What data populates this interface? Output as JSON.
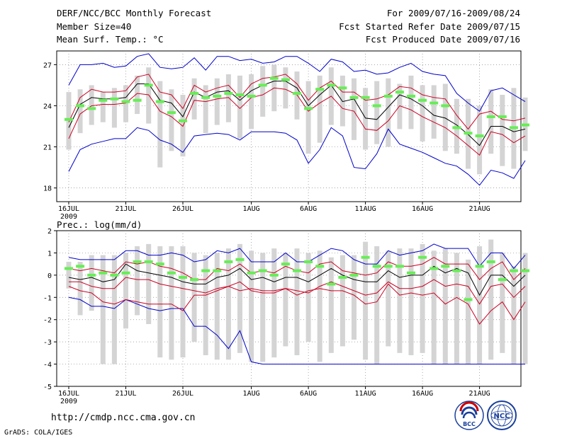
{
  "header": {
    "title": "DERF/NCC/BCC Monthly Forecast",
    "member_size": "Member Size=40",
    "variable_top": "Mean Surf. Temp.: °C",
    "variable_bottom": "Prec.: log(mm/d)",
    "period": "For 2009/07/16-2009/08/24",
    "start_date": "Fcst Started Refer Date 2009/07/15",
    "produced_date": "Fcst Produced Date 2009/07/16"
  },
  "footer": {
    "url": "http://cmdp.ncc.cma.gov.cn",
    "grads": "GrADS: COLA/IGES",
    "logo_bcc": "BCC",
    "logo_ncc": "NCC"
  },
  "colors": {
    "max_min": "#0000cc",
    "spread": "#cc0022",
    "mean": "#000000",
    "median": "#66ee55",
    "box": "#d4d4d4",
    "grid": "#888888"
  },
  "chart_data": [
    {
      "type": "line",
      "title": "Mean Surf. Temp.: °C",
      "x_tick_labels": [
        "16JUL",
        "21JUL",
        "26JUL",
        "1AUG",
        "6AUG",
        "11AUG",
        "16AUG",
        "21AUG"
      ],
      "year_label": "2009",
      "x_tick_days": [
        1,
        6,
        11,
        17,
        22,
        27,
        32,
        37
      ],
      "ylim": [
        17,
        28
      ],
      "yticks": [
        18,
        21,
        24,
        27
      ],
      "series": [
        {
          "name": "max",
          "values": [
            25.5,
            27.0,
            27.0,
            27.1,
            26.8,
            26.9,
            27.6,
            27.8,
            26.8,
            26.7,
            26.8,
            27.5,
            26.6,
            27.6,
            27.6,
            27.3,
            27.4,
            27.1,
            27.2,
            27.6,
            27.6,
            27.1,
            26.5,
            27.4,
            27.2,
            26.5,
            26.6,
            26.3,
            26.4,
            26.8,
            27.1,
            26.5,
            26.3,
            26.2,
            24.9,
            24.2,
            23.6,
            25.1,
            25.3,
            24.8,
            24.3
          ]
        },
        {
          "name": "upper",
          "values": [
            22.8,
            24.6,
            25.2,
            25.0,
            25.0,
            25.1,
            26.1,
            26.3,
            25.0,
            24.8,
            23.8,
            25.5,
            25.0,
            25.3,
            25.5,
            24.6,
            25.6,
            26.0,
            26.1,
            26.3,
            25.6,
            24.4,
            25.3,
            25.8,
            25.0,
            25.0,
            24.4,
            24.5,
            24.8,
            25.4,
            25.3,
            24.8,
            24.6,
            24.5,
            23.3,
            22.3,
            23.4,
            23.6,
            23.0,
            22.9,
            23.1
          ]
        },
        {
          "name": "mean",
          "values": [
            22.4,
            24.1,
            24.6,
            24.5,
            24.5,
            24.6,
            25.6,
            25.6,
            24.4,
            24.2,
            23.2,
            25.0,
            24.6,
            25.0,
            25.1,
            24.4,
            25.1,
            25.5,
            25.8,
            25.8,
            25.3,
            24.0,
            24.8,
            25.5,
            24.3,
            24.5,
            23.1,
            23.0,
            23.9,
            24.8,
            24.5,
            24.0,
            23.3,
            23.1,
            22.6,
            21.9,
            21.1,
            22.5,
            22.5,
            22.1,
            22.3
          ]
        },
        {
          "name": "lower",
          "values": [
            21.6,
            23.4,
            24.0,
            24.1,
            24.1,
            24.2,
            24.9,
            24.8,
            23.6,
            23.2,
            22.5,
            24.4,
            24.3,
            24.5,
            24.6,
            23.8,
            24.6,
            24.8,
            25.3,
            25.2,
            24.8,
            23.6,
            24.2,
            24.7,
            23.8,
            23.6,
            22.3,
            22.2,
            22.9,
            24.0,
            23.7,
            23.2,
            22.8,
            22.4,
            21.8,
            21.1,
            20.4,
            22.1,
            21.9,
            21.3,
            21.8
          ]
        },
        {
          "name": "min",
          "values": [
            19.2,
            20.8,
            21.2,
            21.4,
            21.6,
            21.6,
            22.4,
            22.2,
            21.5,
            21.2,
            20.6,
            21.8,
            21.9,
            22.0,
            21.9,
            21.5,
            22.1,
            22.1,
            22.1,
            22.0,
            21.5,
            19.8,
            20.8,
            22.4,
            21.8,
            19.5,
            19.4,
            20.5,
            22.3,
            21.2,
            20.9,
            20.6,
            20.2,
            19.8,
            19.6,
            19.0,
            18.2,
            19.3,
            19.1,
            18.7,
            20.0
          ]
        },
        {
          "name": "median",
          "values": [
            23.0,
            24.0,
            23.8,
            24.4,
            24.5,
            24.3,
            24.4,
            25.5,
            24.3,
            23.5,
            22.9,
            24.9,
            24.6,
            24.7,
            24.9,
            24.8,
            24.7,
            25.5,
            26.0,
            25.9,
            24.9,
            23.8,
            25.2,
            25.5,
            25.3,
            24.6,
            24.6,
            24.0,
            24.7,
            25.0,
            24.7,
            24.4,
            24.2,
            24.0,
            22.4,
            22.0,
            21.8,
            23.2,
            23.2,
            22.4,
            22.6
          ]
        },
        {
          "name": "box_high",
          "values": [
            25.0,
            25.2,
            25.5,
            25.0,
            25.3,
            25.5,
            26.2,
            26.8,
            25.8,
            25.2,
            24.8,
            26.0,
            25.5,
            26.0,
            26.3,
            26.2,
            26.3,
            26.9,
            27.0,
            26.8,
            26.5,
            25.8,
            26.2,
            26.8,
            26.2,
            26.0,
            25.3,
            25.8,
            26.0,
            25.6,
            26.2,
            25.5,
            25.5,
            25.6,
            24.5,
            24.5,
            24.0,
            25.2,
            24.8,
            25.3,
            24.6
          ]
        },
        {
          "name": "box_low",
          "values": [
            20.8,
            22.0,
            22.6,
            22.8,
            22.4,
            22.8,
            23.4,
            22.7,
            19.5,
            20.7,
            20.3,
            23.0,
            22.0,
            22.6,
            22.8,
            21.6,
            22.3,
            23.2,
            23.6,
            23.8,
            23.0,
            20.5,
            21.3,
            22.6,
            22.5,
            21.5,
            20.8,
            21.2,
            21.0,
            22.3,
            22.3,
            21.4,
            21.6,
            20.7,
            20.5,
            19.4,
            19.0,
            20.5,
            19.6,
            19.4,
            20.7
          ]
        }
      ]
    },
    {
      "type": "line",
      "title": "Prec.: log(mm/d)",
      "x_tick_labels": [
        "16JUL",
        "21JUL",
        "26JUL",
        "1AUG",
        "6AUG",
        "11AUG",
        "16AUG",
        "21AUG"
      ],
      "year_label": "2009",
      "x_tick_days": [
        1,
        6,
        11,
        17,
        22,
        27,
        32,
        37
      ],
      "ylim": [
        -5,
        2
      ],
      "yticks": [
        -5,
        -4,
        -3,
        -2,
        -1,
        0,
        1,
        2
      ],
      "series": [
        {
          "name": "max",
          "values": [
            0.8,
            0.7,
            0.7,
            0.7,
            0.7,
            1.1,
            1.1,
            0.9,
            0.9,
            1.0,
            0.9,
            0.6,
            0.7,
            1.1,
            1.0,
            1.2,
            0.6,
            0.6,
            0.6,
            1.0,
            0.6,
            0.6,
            0.9,
            1.2,
            1.1,
            0.7,
            0.5,
            0.5,
            1.1,
            0.9,
            1.0,
            1.1,
            1.4,
            1.2,
            1.2,
            1.2,
            0.4,
            1.0,
            1.0,
            0.3,
            0.9
          ]
        },
        {
          "name": "upper",
          "values": [
            0.3,
            0.2,
            0.3,
            0.2,
            0.1,
            0.6,
            0.5,
            0.6,
            0.4,
            0.3,
            0.1,
            -0.2,
            -0.2,
            0.3,
            0.2,
            0.5,
            0.1,
            0.2,
            0.1,
            0.4,
            0.2,
            0.1,
            0.5,
            0.6,
            0.2,
            0.1,
            0.0,
            0.1,
            0.6,
            0.4,
            0.4,
            0.5,
            0.8,
            0.5,
            0.5,
            0.5,
            -0.2,
            0.3,
            0.6,
            -0.2,
            0.3
          ]
        },
        {
          "name": "mean",
          "values": [
            -0.1,
            -0.2,
            -0.1,
            -0.3,
            -0.2,
            0.5,
            0.2,
            0.1,
            0.0,
            -0.1,
            -0.3,
            -0.4,
            -0.4,
            -0.1,
            0.0,
            0.3,
            -0.2,
            -0.1,
            -0.3,
            -0.1,
            -0.1,
            -0.3,
            0.0,
            0.3,
            0.0,
            -0.2,
            -0.3,
            -0.3,
            0.2,
            -0.1,
            0.0,
            0.0,
            0.4,
            0.1,
            0.3,
            0.1,
            -0.9,
            0.0,
            0.0,
            -0.5,
            0.0
          ]
        },
        {
          "name": "lower",
          "values": [
            -0.3,
            -0.3,
            -0.5,
            -0.6,
            -0.6,
            -0.1,
            -0.2,
            -0.2,
            -0.4,
            -0.5,
            -0.6,
            -0.7,
            -0.8,
            -0.6,
            -0.5,
            -0.3,
            -0.7,
            -0.8,
            -0.8,
            -0.6,
            -0.7,
            -0.8,
            -0.5,
            -0.3,
            -0.5,
            -0.7,
            -0.9,
            -0.8,
            -0.3,
            -0.6,
            -0.6,
            -0.5,
            -0.2,
            -0.5,
            -0.4,
            -0.5,
            -1.3,
            -0.5,
            -0.4,
            -1.0,
            -0.5
          ]
        },
        {
          "name": "min",
          "values": [
            -1.0,
            -1.1,
            -1.4,
            -1.4,
            -1.5,
            -1.1,
            -1.3,
            -1.5,
            -1.6,
            -1.5,
            -1.5,
            -2.3,
            -2.3,
            -2.7,
            -3.3,
            -2.5,
            -3.9,
            -4.0,
            -4.0,
            -4.0,
            -4.0,
            -4.0,
            -4.0,
            -4.0,
            -4.0,
            -4.0,
            -4.0,
            -4.0,
            -4.0,
            -4.0,
            -4.0,
            -4.0,
            -4.0,
            -4.0,
            -4.0,
            -4.0,
            -4.0,
            -4.0,
            -4.0,
            -4.0,
            -4.0
          ]
        },
        {
          "name": "max_low",
          "values": [
            -0.5,
            -0.7,
            -0.8,
            -1.2,
            -1.3,
            -1.1,
            -1.2,
            -1.3,
            -1.3,
            -1.3,
            -1.6,
            -0.9,
            -0.9,
            -0.7,
            -0.5,
            -0.7,
            -0.6,
            -0.7,
            -0.7,
            -0.6,
            -0.9,
            -0.7,
            -0.6,
            -0.7,
            -0.7,
            -0.9,
            -1.3,
            -1.2,
            -0.4,
            -0.9,
            -0.8,
            -0.9,
            -0.8,
            -1.3,
            -1.0,
            -1.3,
            -2.2,
            -1.6,
            -1.2,
            -2.0,
            -1.2
          ]
        },
        {
          "name": "median",
          "values": [
            0.3,
            0.4,
            0.0,
            0.1,
            0.0,
            0.1,
            0.6,
            0.6,
            0.5,
            0.1,
            -0.1,
            -0.2,
            0.2,
            0.2,
            0.6,
            0.7,
            0.1,
            0.2,
            0.0,
            0.5,
            0.2,
            0.6,
            0.4,
            -0.4,
            -0.1,
            0.0,
            0.8,
            0.4,
            0.4,
            0.4,
            0.1,
            0.8,
            0.3,
            0.4,
            0.2,
            -1.1,
            0.4,
            0.6,
            -0.2,
            0.2,
            0.2
          ]
        },
        {
          "name": "box_high",
          "values": [
            0.6,
            0.6,
            0.9,
            0.9,
            0.9,
            1.0,
            1.3,
            1.4,
            1.3,
            1.3,
            1.3,
            1.0,
            0.9,
            1.0,
            1.2,
            1.4,
            1.1,
            1.0,
            1.2,
            1.0,
            1.2,
            1.0,
            1.1,
            0.8,
            0.9,
            0.9,
            1.5,
            1.3,
            1.1,
            1.2,
            1.2,
            1.4,
            1.1,
            1.2,
            1.0,
            0.7,
            1.3,
            1.6,
            1.0,
            0.4,
            1.0
          ]
        },
        {
          "name": "box_low",
          "values": [
            -0.6,
            -1.8,
            -1.6,
            -4.0,
            -4.0,
            -2.4,
            -1.8,
            -2.2,
            -3.7,
            -3.8,
            -3.7,
            -3.0,
            -3.6,
            -3.8,
            -3.8,
            -3.5,
            -3.9,
            -3.9,
            -3.7,
            -3.2,
            -3.6,
            -3.0,
            -3.9,
            -3.5,
            -3.2,
            -2.9,
            -3.8,
            -4.0,
            -3.2,
            -3.5,
            -3.6,
            -3.5,
            -4.0,
            -4.0,
            -4.0,
            -4.0,
            -4.0,
            -3.8,
            -3.5,
            -4.0,
            -4.0
          ]
        }
      ]
    }
  ]
}
